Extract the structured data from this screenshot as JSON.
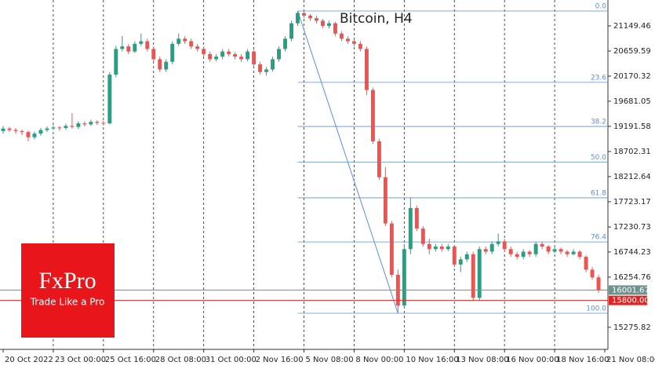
{
  "chart_data": {
    "type": "candlestick",
    "title": "Bitcoin, H4",
    "up_color": "#26a085",
    "down_color": "#ef5350",
    "xlim": [
      -0.5,
      96.5
    ],
    "ylim": [
      14846,
      21654
    ],
    "xticks": [
      {
        "value": 0,
        "label": "20 Oct 2022"
      },
      {
        "value": 8,
        "label": "23 Oct 00:00"
      },
      {
        "value": 16,
        "label": "25 Oct 16:00"
      },
      {
        "value": 24,
        "label": "28 Oct 08:00"
      },
      {
        "value": 32,
        "label": "31 Oct 00:00"
      },
      {
        "value": 40,
        "label": "2 Nov 16:00"
      },
      {
        "value": 48,
        "label": "5 Nov 08:00"
      },
      {
        "value": 56,
        "label": "8 Nov 00:00"
      },
      {
        "value": 64,
        "label": "10 Nov 16:00"
      },
      {
        "value": 72,
        "label": "13 Nov 08:00"
      },
      {
        "value": 80,
        "label": "16 Nov 00:00"
      },
      {
        "value": 88,
        "label": "18 Nov 16:00"
      },
      {
        "value": 96,
        "label": "21 Nov 08:00"
      }
    ],
    "yticks": [
      21149.46,
      20659.59,
      20170.32,
      19681.05,
      19191.58,
      18702.31,
      18212.64,
      17723.17,
      17230.73,
      16744.23,
      16254.76,
      15275.82
    ],
    "grid": true,
    "ohlc": [
      [
        19100,
        19200,
        19050,
        19150
      ],
      [
        19150,
        19180,
        19080,
        19120
      ],
      [
        19120,
        19160,
        19050,
        19100
      ],
      [
        19100,
        19130,
        19020,
        19080
      ],
      [
        19080,
        19110,
        18900,
        18980
      ],
      [
        18980,
        19090,
        18940,
        19050
      ],
      [
        19050,
        19160,
        19010,
        19120
      ],
      [
        19120,
        19190,
        19080,
        19150
      ],
      [
        19150,
        19210,
        19120,
        19170
      ],
      [
        19170,
        19200,
        19110,
        19160
      ],
      [
        19160,
        19240,
        19130,
        19200
      ],
      [
        19200,
        19450,
        19150,
        19180
      ],
      [
        19180,
        19290,
        19140,
        19250
      ],
      [
        19250,
        19290,
        19190,
        19230
      ],
      [
        19230,
        19320,
        19200,
        19280
      ],
      [
        19280,
        19310,
        19220,
        19260
      ],
      [
        19260,
        19300,
        19210,
        19250
      ],
      [
        19250,
        20250,
        19230,
        20200
      ],
      [
        20200,
        20760,
        20150,
        20700
      ],
      [
        20700,
        20950,
        20650,
        20750
      ],
      [
        20750,
        20800,
        20600,
        20650
      ],
      [
        20650,
        20850,
        20620,
        20800
      ],
      [
        20800,
        21000,
        20760,
        20850
      ],
      [
        20850,
        20900,
        20650,
        20700
      ],
      [
        20700,
        20750,
        20450,
        20500
      ],
      [
        20500,
        20550,
        20250,
        20300
      ],
      [
        20300,
        20500,
        20250,
        20450
      ],
      [
        20450,
        20850,
        20400,
        20800
      ],
      [
        20800,
        21000,
        20760,
        20900
      ],
      [
        20900,
        20950,
        20800,
        20850
      ],
      [
        20850,
        20900,
        20700,
        20750
      ],
      [
        20750,
        20800,
        20650,
        20700
      ],
      [
        20700,
        20750,
        20550,
        20600
      ],
      [
        20600,
        20650,
        20450,
        20500
      ],
      [
        20500,
        20600,
        20460,
        20550
      ],
      [
        20550,
        20700,
        20500,
        20650
      ],
      [
        20650,
        20700,
        20550,
        20600
      ],
      [
        20600,
        20640,
        20500,
        20550
      ],
      [
        20550,
        20600,
        20450,
        20500
      ],
      [
        20500,
        20700,
        20460,
        20650
      ],
      [
        20650,
        20680,
        20350,
        20400
      ],
      [
        20400,
        20450,
        20200,
        20250
      ],
      [
        20250,
        20350,
        20180,
        20300
      ],
      [
        20300,
        20550,
        20260,
        20500
      ],
      [
        20500,
        20750,
        20450,
        20700
      ],
      [
        20700,
        20950,
        20650,
        20900
      ],
      [
        20900,
        21250,
        20850,
        21200
      ],
      [
        21200,
        21440,
        21150,
        21400
      ],
      [
        21400,
        21420,
        21300,
        21350
      ],
      [
        21350,
        21380,
        21250,
        21300
      ],
      [
        21300,
        21350,
        21200,
        21250
      ],
      [
        21250,
        21290,
        21100,
        21150
      ],
      [
        21150,
        21250,
        21100,
        21200
      ],
      [
        21200,
        21230,
        20950,
        21000
      ],
      [
        21000,
        21050,
        20850,
        20900
      ],
      [
        20900,
        20950,
        20800,
        20850
      ],
      [
        20850,
        20880,
        20750,
        20800
      ],
      [
        20800,
        20850,
        20650,
        20700
      ],
      [
        20700,
        20750,
        19800,
        19900
      ],
      [
        19900,
        19950,
        18850,
        18900
      ],
      [
        18900,
        18950,
        18150,
        18200
      ],
      [
        18200,
        18400,
        17250,
        17300
      ],
      [
        17300,
        17350,
        16250,
        16300
      ],
      [
        16300,
        16400,
        15550,
        15700
      ],
      [
        15700,
        16900,
        15650,
        16800
      ],
      [
        16800,
        17800,
        16700,
        17600
      ],
      [
        17600,
        17650,
        17150,
        17200
      ],
      [
        17200,
        17250,
        16850,
        16900
      ],
      [
        16900,
        17000,
        16700,
        16800
      ],
      [
        16800,
        16900,
        16750,
        16850
      ],
      [
        16850,
        16900,
        16750,
        16800
      ],
      [
        16800,
        16900,
        16760,
        16850
      ],
      [
        16850,
        16880,
        16450,
        16500
      ],
      [
        16500,
        16650,
        16350,
        16600
      ],
      [
        16600,
        16750,
        16550,
        16700
      ],
      [
        16700,
        16750,
        15800,
        15850
      ],
      [
        15850,
        16850,
        15800,
        16800
      ],
      [
        16800,
        16850,
        16700,
        16750
      ],
      [
        16750,
        16950,
        16700,
        16900
      ],
      [
        16900,
        17100,
        16850,
        16950
      ],
      [
        16950,
        17000,
        16750,
        16800
      ],
      [
        16800,
        16850,
        16650,
        16700
      ],
      [
        16700,
        16750,
        16600,
        16650
      ],
      [
        16650,
        16800,
        16600,
        16750
      ],
      [
        16750,
        16780,
        16650,
        16700
      ],
      [
        16700,
        16950,
        16650,
        16900
      ],
      [
        16900,
        16950,
        16800,
        16850
      ],
      [
        16850,
        16880,
        16700,
        16750
      ],
      [
        16750,
        16850,
        16720,
        16800
      ],
      [
        16800,
        16830,
        16700,
        16750
      ],
      [
        16750,
        16780,
        16650,
        16700
      ],
      [
        16700,
        16800,
        16680,
        16750
      ],
      [
        16750,
        16780,
        16600,
        16650
      ],
      [
        16650,
        16680,
        16350,
        16400
      ],
      [
        16400,
        16450,
        16200,
        16250
      ],
      [
        16250,
        16300,
        15950,
        16001.67
      ]
    ],
    "fibonacci": {
      "color": "#5a8fd0",
      "from": [
        47,
        21440
      ],
      "to": [
        63,
        15550
      ],
      "levels": [
        {
          "value": 0,
          "label": "0.0"
        },
        23.6,
        38.2,
        {
          "value": 50,
          "label": "50.0"
        },
        61.8,
        76.4,
        {
          "value": 100,
          "label": "100.0"
        }
      ]
    },
    "price_lines": [
      {
        "value": 16001.67,
        "color": "#6e928c"
      },
      {
        "value": 15800,
        "label": "15800.00",
        "color": "#e02424"
      }
    ],
    "logo": {
      "name": "FxPro",
      "tagline": "Trade Like a Pro",
      "color": "#e8161b"
    }
  }
}
